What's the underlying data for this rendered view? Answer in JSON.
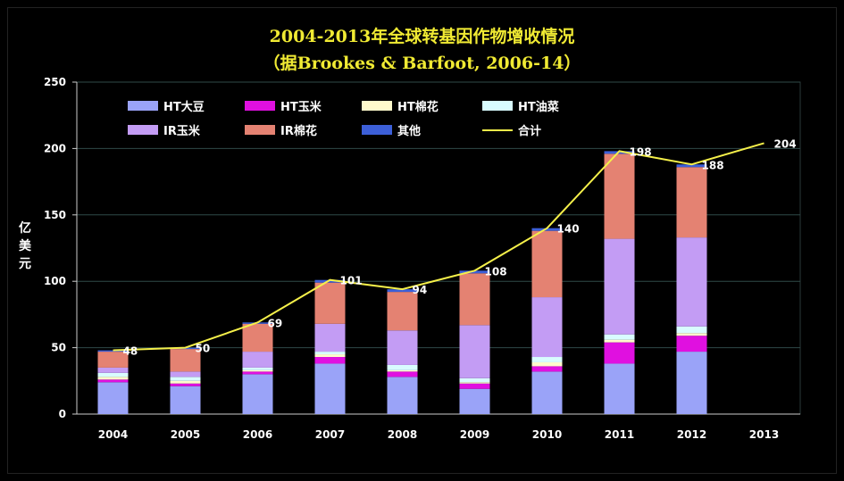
{
  "title_line1": "2004-2013年全球转基因作物增收情况",
  "title_line2": "（据Brookes & Barfoot, 2006-14）",
  "y_axis_label": "亿美元",
  "chart_data": {
    "type": "bar",
    "stacked": true,
    "title": "2004-2013年全球转基因作物增收情况",
    "subtitle": "（据Brookes & Barfoot, 2006-14）",
    "xlabel": "",
    "ylabel": "亿美元",
    "ylim": [
      0,
      250
    ],
    "yticks": [
      0,
      50,
      100,
      150,
      200,
      250
    ],
    "grid": true,
    "legend_position": "top-left",
    "categories": [
      "2004",
      "2005",
      "2006",
      "2007",
      "2008",
      "2009",
      "2010",
      "2011",
      "2012",
      "2013"
    ],
    "series": [
      {
        "name": "HT大豆",
        "color": "#9aa3f8",
        "values": [
          24,
          21,
          30,
          38,
          28,
          19,
          32,
          38,
          47,
          null
        ]
      },
      {
        "name": "HT玉米",
        "color": "#e010e0",
        "values": [
          2,
          2,
          2,
          5,
          4,
          4,
          4,
          16,
          12,
          null
        ]
      },
      {
        "name": "HT棉花",
        "color": "#fffacc",
        "values": [
          2,
          2,
          1,
          2,
          1,
          1,
          3,
          2,
          2,
          null
        ]
      },
      {
        "name": "HT油菜",
        "color": "#d8fcff",
        "values": [
          3,
          3,
          2,
          2,
          4,
          3,
          4,
          4,
          5,
          null
        ]
      },
      {
        "name": "IR玉米",
        "color": "#c39cf4",
        "values": [
          4,
          4,
          12,
          21,
          26,
          40,
          45,
          72,
          67,
          null
        ]
      },
      {
        "name": "IR棉花",
        "color": "#e48272",
        "values": [
          12,
          17,
          21,
          31,
          29,
          39,
          50,
          64,
          53,
          null
        ]
      },
      {
        "name": "其他",
        "color": "#3c5fd8",
        "values": [
          1,
          1,
          1,
          2,
          2,
          2,
          2,
          2,
          2,
          null
        ]
      }
    ],
    "total": {
      "name": "合计",
      "color": "#f5f04a",
      "values": [
        48,
        50,
        69,
        101,
        94,
        108,
        140,
        198,
        188,
        204
      ]
    }
  }
}
